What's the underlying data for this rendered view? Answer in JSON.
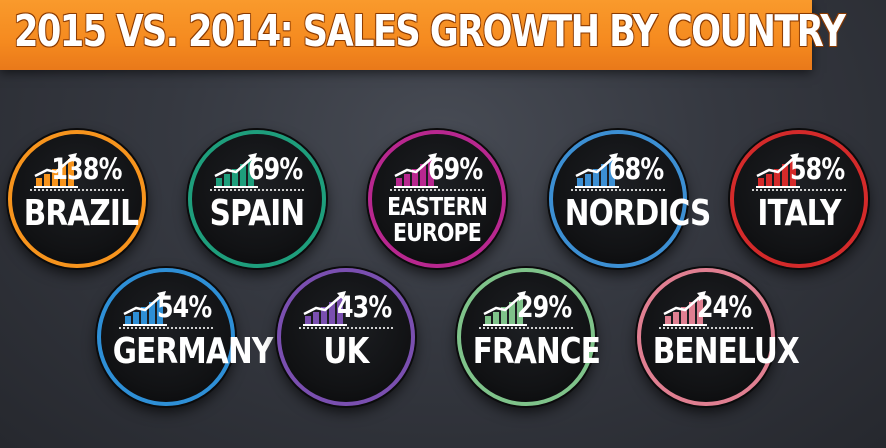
{
  "title": "2015 VS. 2014:  SALES GROWTH BY COUNTRY",
  "badges": [
    {
      "country": "BRAZIL",
      "growth": "138%",
      "color": "#f7941d",
      "icon": "bar-chart-growth-icon"
    },
    {
      "country": "SPAIN",
      "growth": "69%",
      "color": "#1e9e7c",
      "icon": "bar-chart-growth-icon"
    },
    {
      "country": "EASTERN EUROPE",
      "country_line1": "EASTERN",
      "country_line2": "EUROPE",
      "growth": "69%",
      "color": "#b8278f",
      "icon": "bar-chart-growth-icon"
    },
    {
      "country": "NORDICS",
      "growth": "68%",
      "color": "#3c8fd3",
      "icon": "bar-chart-growth-icon"
    },
    {
      "country": "ITALY",
      "growth": "58%",
      "color": "#d42a2a",
      "icon": "bar-chart-growth-icon"
    },
    {
      "country": "GERMANY",
      "growth": "54%",
      "color": "#2e8fd6",
      "icon": "bar-chart-growth-icon"
    },
    {
      "country": "UK",
      "growth": "43%",
      "color": "#7a4fb0",
      "icon": "bar-chart-growth-icon"
    },
    {
      "country": "FRANCE",
      "growth": "29%",
      "color": "#7fc38a",
      "icon": "bar-chart-growth-icon"
    },
    {
      "country": "BENELUX",
      "growth": "24%",
      "color": "#e07f91",
      "icon": "bar-chart-growth-icon"
    }
  ]
}
